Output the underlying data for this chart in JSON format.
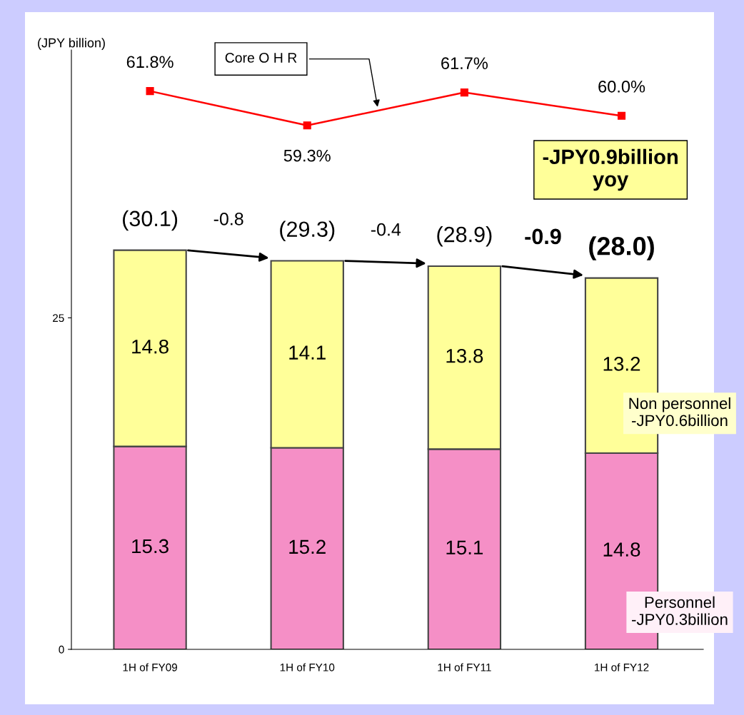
{
  "chart_data": {
    "type": "bar",
    "stacked": true,
    "ylabel": "(JPY billion)",
    "categories": [
      "1H of FY09",
      "1H of FY10",
      "1H of FY11",
      "1H of FY12"
    ],
    "ylim": [
      0,
      45.2
    ],
    "yticks": [
      0,
      25
    ],
    "y2lim": [
      21.1,
      64.8
    ],
    "grid": false,
    "data_labels": true,
    "series": [
      {
        "name": "Personnel",
        "color": "#f58fc6",
        "values": [
          15.3,
          15.2,
          15.1,
          14.8
        ]
      },
      {
        "name": "Non personnel",
        "color": "#ffff99",
        "values": [
          14.8,
          14.1,
          13.8,
          13.2
        ]
      },
      {
        "name": "Core O H R",
        "type": "line",
        "axis": "y2",
        "color": "#ff0000",
        "marker": "square",
        "values": [
          61.8,
          59.3,
          61.7,
          60.0
        ],
        "value_labels": [
          "61.8%",
          "59.3%",
          "61.7%",
          "60.0%"
        ]
      }
    ],
    "totals": [
      "(30.1)",
      "(29.3)",
      "(28.9)",
      "(28.0)"
    ],
    "annotations": [
      "-0.8",
      "-0.4",
      "-0.9",
      "-JPY0.9billion\nyoy",
      "-JPY0.6billion",
      "-JPY0.3billion"
    ]
  }
}
